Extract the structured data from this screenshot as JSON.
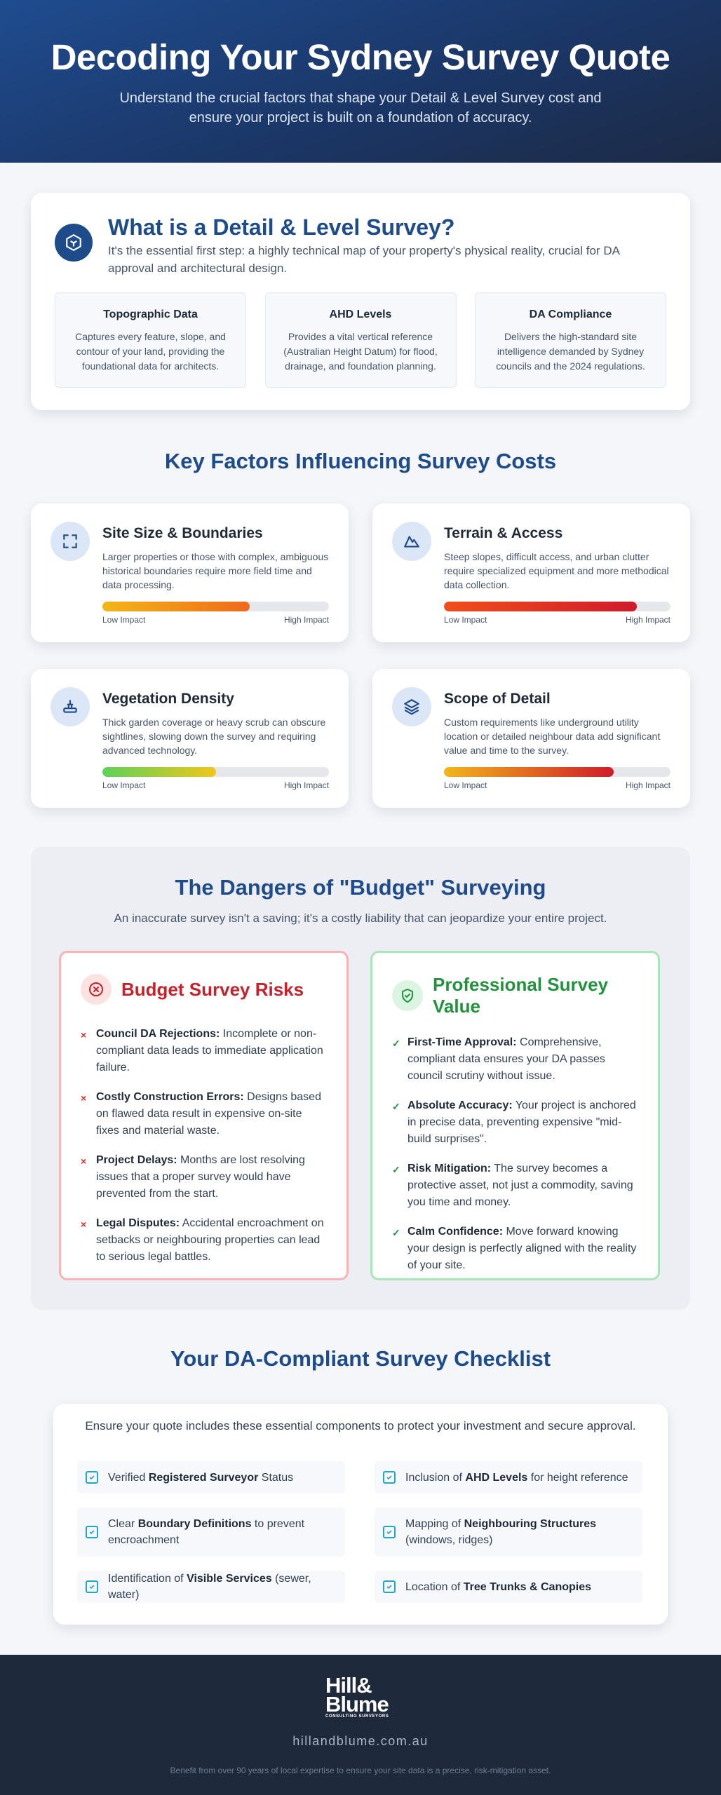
{
  "hero": {
    "title": "Decoding Your Sydney Survey Quote",
    "subtitle": "Understand the crucial factors that shape your Detail & Level Survey cost and ensure your project is built on a foundation of accuracy."
  },
  "what_is": {
    "title": "What is a Detail & Level Survey?",
    "description": "It's the essential first step: a highly technical map of your property's physical reality, crucial for DA approval and architectural design.",
    "icon": "cube-icon",
    "features": [
      {
        "title": "Topographic Data",
        "text": "Captures every feature, slope, and contour of your land, providing the foundational data for architects."
      },
      {
        "title": "AHD Levels",
        "text": "Provides a vital vertical reference (Australian Height Datum) for flood, drainage, and foundation planning."
      },
      {
        "title": "DA Compliance",
        "text": "Delivers the high-standard site intelligence demanded by Sydney councils and the 2024 regulations."
      }
    ]
  },
  "factors": {
    "title": "Key Factors Influencing Survey Costs",
    "low_label": "Low Impact",
    "high_label": "High Impact",
    "items": [
      {
        "title": "Site Size & Boundaries",
        "text": "Larger properties or those with complex, ambiguous historical boundaries require more field time and data processing.",
        "icon": "expand-icon",
        "impact": 0.65,
        "gradient": [
          "#f2b619",
          "#ee6a1b"
        ]
      },
      {
        "title": "Terrain & Access",
        "text": "Steep slopes, difficult access, and urban clutter require specialized equipment and more methodical data collection.",
        "icon": "mountain-icon",
        "impact": 0.85,
        "gradient": [
          "#ef4f1b",
          "#cf1b2b"
        ]
      },
      {
        "title": "Vegetation Density",
        "text": "Thick garden coverage or heavy scrub can obscure sightlines, slowing down the survey and requiring advanced technology.",
        "icon": "shrub-icon",
        "impact": 0.5,
        "gradient": [
          "#5ed05a",
          "#efc71a"
        ]
      },
      {
        "title": "Scope of Detail",
        "text": "Custom requirements like underground utility location or detailed neighbour data add significant value and time to the survey.",
        "icon": "layers-icon",
        "impact": 0.75,
        "gradient": [
          "#f2b619",
          "#cf1b2b"
        ]
      }
    ]
  },
  "dangers": {
    "title": "The Dangers of \"Budget\" Surveying",
    "subtitle": "An inaccurate survey isn't a saving; it's a costly liability that can jeopardize your entire project.",
    "budget": {
      "title": "Budget Survey Risks",
      "icon": "x-circle-icon",
      "items": [
        {
          "bold": "Council DA Rejections:",
          "text": " Incomplete or non-compliant data leads to immediate application failure."
        },
        {
          "bold": "Costly Construction Errors:",
          "text": " Designs based on flawed data result in expensive on-site fixes and material waste."
        },
        {
          "bold": "Project Delays:",
          "text": " Months are lost resolving issues that a proper survey would have prevented from the start."
        },
        {
          "bold": "Legal Disputes:",
          "text": " Accidental encroachment on setbacks or neighbouring properties can lead to serious legal battles."
        }
      ]
    },
    "professional": {
      "title": "Professional Survey Value",
      "icon": "shield-check-icon",
      "items": [
        {
          "bold": "First-Time Approval:",
          "text": " Comprehensive, compliant data ensures your DA passes council scrutiny without issue."
        },
        {
          "bold": "Absolute Accuracy:",
          "text": " Your project is anchored in precise data, preventing expensive \"mid-build surprises\"."
        },
        {
          "bold": "Risk Mitigation:",
          "text": " The survey becomes a protective asset, not just a commodity, saving you time and money."
        },
        {
          "bold": "Calm Confidence:",
          "text": " Move forward knowing your design is perfectly aligned with the reality of your site."
        }
      ]
    },
    "cross_mark": "×",
    "check_mark": "✓"
  },
  "checklist": {
    "title": "Your DA-Compliant Survey Checklist",
    "intro": "Ensure your quote includes these essential components to protect your investment and secure approval.",
    "items": [
      {
        "pre": "Verified ",
        "bold": "Registered Surveyor",
        "post": " Status"
      },
      {
        "pre": "Inclusion of ",
        "bold": "AHD Levels",
        "post": " for height reference"
      },
      {
        "pre": "Clear ",
        "bold": "Boundary Definitions",
        "post": " to prevent encroachment"
      },
      {
        "pre": "Mapping of ",
        "bold": "Neighbouring Structures",
        "post": " (windows, ridges)"
      },
      {
        "pre": "Identification of ",
        "bold": "Visible Services",
        "post": " (sewer, water)"
      },
      {
        "pre": "Location of ",
        "bold": "Tree Trunks & Canopies",
        "post": ""
      }
    ]
  },
  "footer": {
    "logo_line1": "Hill&",
    "logo_line2": "Blume",
    "logo_tag": "CONSULTING SURVEYORS",
    "site": "hillandblume.com.au",
    "tagline": "Benefit from over 90 years of local expertise to ensure your site data is a precise, risk-mitigation asset."
  }
}
